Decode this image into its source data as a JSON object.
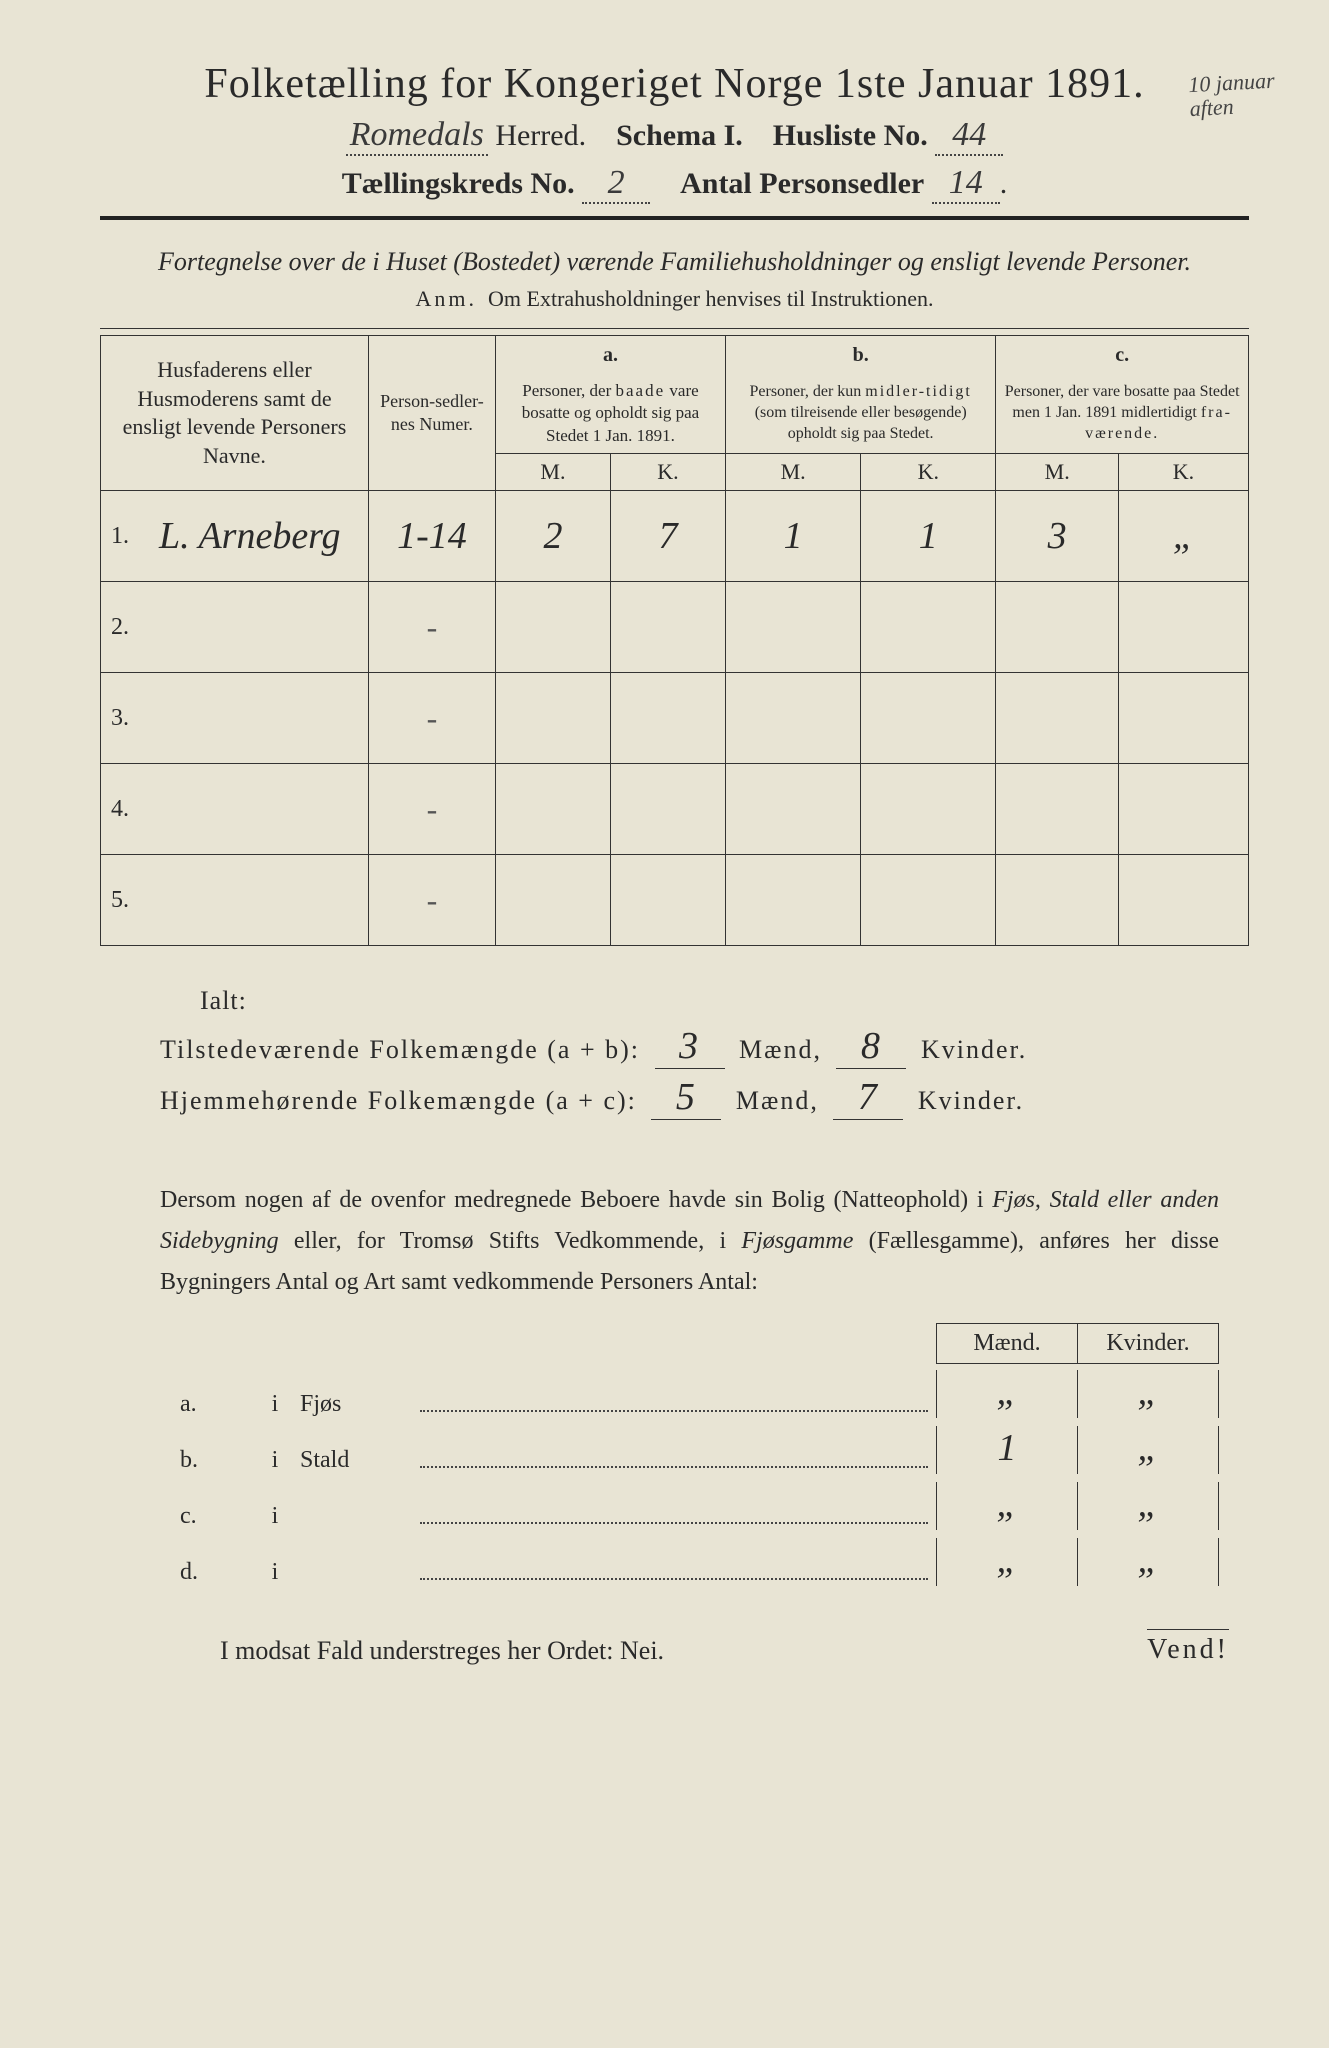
{
  "background_color": "#e8e4d4",
  "text_color": "#2a2a2a",
  "header": {
    "title": "Folketælling for Kongeriget Norge 1ste Januar 1891.",
    "herred_value": "Romedals",
    "herred_label": "Herred.",
    "schema_label": "Schema I.",
    "husliste_label": "Husliste No.",
    "husliste_value": "44",
    "kreds_label": "Tællingskreds No.",
    "kreds_value": "2",
    "antal_label": "Antal Personsedler",
    "antal_value": "14",
    "margin_note": "10 januar aften"
  },
  "subtitle": "Fortegnelse over de i Huset (Bostedet) værende Familiehusholdninger og ensligt levende Personer.",
  "anm_label": "Anm.",
  "anm_text": "Om Extrahusholdninger henvises til Instruktionen.",
  "columns": {
    "name_header": "Husfaderens eller Husmoderens samt de ensligt levende Personers Navne.",
    "numer_header": "Person-sedler-nes Numer.",
    "a_letter": "a.",
    "a_text": "Personer, der baade vare bosatte og opholdt sig paa Stedet 1 Jan. 1891.",
    "b_letter": "b.",
    "b_text": "Personer, der kun midlertidigt (som tilreisende eller besøgende) opholdt sig paa Stedet.",
    "c_letter": "c.",
    "c_text": "Personer, der vare bosatte paa Stedet men 1 Jan. 1891 midlertidigt fraværende.",
    "m": "M.",
    "k": "K."
  },
  "rows": [
    {
      "n": "1.",
      "name": "L. Arneberg",
      "numer": "1-14",
      "am": "2",
      "ak": "7",
      "bm": "1",
      "bk": "1",
      "cm": "3",
      "ck": "„"
    },
    {
      "n": "2.",
      "name": "",
      "numer": "-",
      "am": "",
      "ak": "",
      "bm": "",
      "bk": "",
      "cm": "",
      "ck": ""
    },
    {
      "n": "3.",
      "name": "",
      "numer": "-",
      "am": "",
      "ak": "",
      "bm": "",
      "bk": "",
      "cm": "",
      "ck": ""
    },
    {
      "n": "4.",
      "name": "",
      "numer": "-",
      "am": "",
      "ak": "",
      "bm": "",
      "bk": "",
      "cm": "",
      "ck": ""
    },
    {
      "n": "5.",
      "name": "",
      "numer": "-",
      "am": "",
      "ak": "",
      "bm": "",
      "bk": "",
      "cm": "",
      "ck": ""
    }
  ],
  "totals": {
    "ialt": "Ialt:",
    "line1_label": "Tilstedeværende Folkemængde (a + b):",
    "line1_m": "3",
    "line1_k": "8",
    "line2_label": "Hjemmehørende Folkemængde (a + c):",
    "line2_m": "5",
    "line2_k": "7",
    "maend": "Mænd,",
    "kvinder": "Kvinder."
  },
  "paragraph": "Dersom nogen af de ovenfor medregnede Beboere havde sin Bolig (Natteophold) i Fjøs, Stald eller anden Sidebygning eller, for Tromsø Stifts Vedkommende, i Fjøsgamme (Fællesgamme), anføres her disse Bygningers Antal og Art samt vedkommende Personers Antal:",
  "buildings": {
    "maend": "Mænd.",
    "kvinder": "Kvinder.",
    "rows": [
      {
        "label": "a.",
        "i": "i",
        "name": "Fjøs",
        "m": "„",
        "k": "„"
      },
      {
        "label": "b.",
        "i": "i",
        "name": "Stald",
        "m": "1",
        "k": "„"
      },
      {
        "label": "c.",
        "i": "i",
        "name": "",
        "m": "„",
        "k": "„"
      },
      {
        "label": "d.",
        "i": "i",
        "name": "",
        "m": "„",
        "k": "„"
      }
    ]
  },
  "footer": "I modsat Fald understreges her Ordet: Nei.",
  "vend": "Vend!"
}
